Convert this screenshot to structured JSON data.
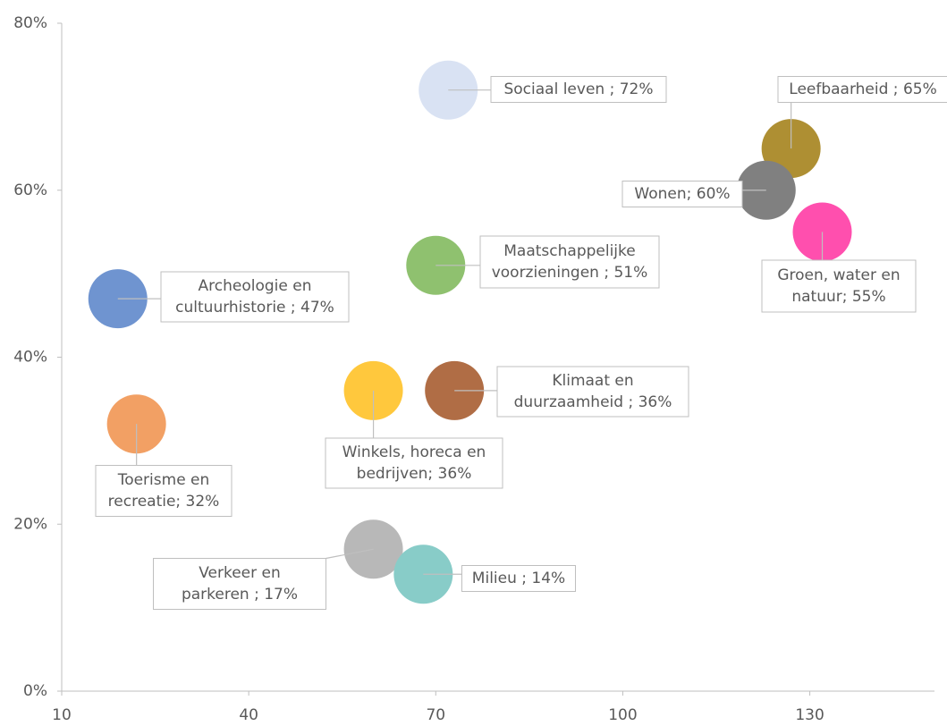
{
  "chart_data": {
    "type": "scatter",
    "x": [
      72,
      127,
      123,
      132,
      70,
      19,
      60,
      73,
      22,
      60,
      68
    ],
    "values": [
      72,
      65,
      60,
      55,
      51,
      47,
      36,
      36,
      32,
      17,
      14
    ],
    "value_labels": [
      [
        "Sociaal leven ; 72%"
      ],
      [
        "Leefbaarheid ; 65%"
      ],
      [
        "Wonen; 60%"
      ],
      [
        "Groen, water en",
        "natuur; 55%"
      ],
      [
        "Maatschappelijke",
        "voorzieningen ; 51%"
      ],
      [
        "Archeologie en",
        "cultuurhistorie ; 47%"
      ],
      [
        "Winkels, horeca en",
        "bedrijven; 36%"
      ],
      [
        "Klimaat en",
        "duurzaamheid ; 36%"
      ],
      [
        "Toerisme en",
        "recreatie; 32%"
      ],
      [
        "Verkeer en",
        "parkeren ; 17%"
      ],
      [
        "Milieu ; 14%"
      ]
    ],
    "colors": [
      "#d9e2f3",
      "#ae8f33",
      "#808080",
      "#ff4fae",
      "#8fc16f",
      "#6f94d0",
      "#ffc83d",
      "#b06d45",
      "#f2a064",
      "#b8b8b8",
      "#88ccc8"
    ],
    "xlim": [
      10,
      150
    ],
    "xticks": [
      10,
      40,
      70,
      100,
      130
    ],
    "ylim": [
      0,
      80
    ],
    "yticks": [
      {
        "value": 0,
        "label": "0%"
      },
      {
        "value": 20,
        "label": "20%"
      },
      {
        "value": 40,
        "label": "40%"
      },
      {
        "value": 60,
        "label": "60%"
      },
      {
        "value": 80,
        "label": "80%"
      }
    ],
    "grid": false
  }
}
